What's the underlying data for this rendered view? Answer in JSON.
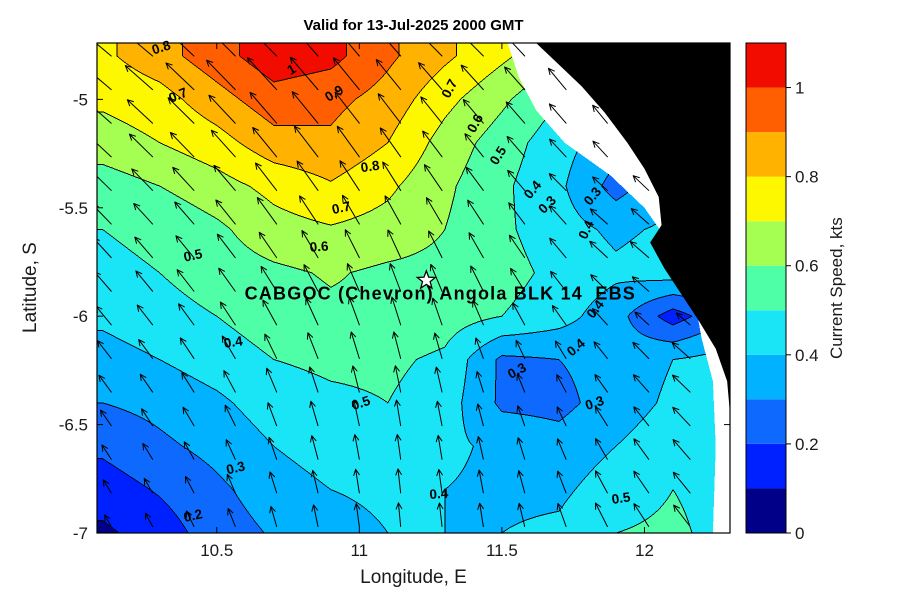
{
  "title": "Valid for 13-Jul-2025 2000 GMT",
  "axes": {
    "xlabel": "Longitude, E",
    "ylabel": "Latitude, S",
    "xlim": [
      10.08,
      12.3
    ],
    "ylim": [
      -7.0,
      -4.74
    ],
    "x_ticks": [
      10.5,
      11,
      11.5,
      12
    ],
    "x_tick_labels": [
      "10.5",
      "11",
      "11.5",
      "12"
    ],
    "y_ticks": [
      -5,
      -5.5,
      -6,
      -6.5,
      -7
    ],
    "y_tick_labels": [
      "-5",
      "-5.5",
      "-6",
      "-6.5",
      "-7"
    ]
  },
  "colorbar": {
    "label": "Current Speed, kts",
    "range": [
      0,
      1.1
    ],
    "ticks": [
      0,
      0.2,
      0.4,
      0.6,
      0.8,
      1
    ],
    "tick_labels": [
      "0",
      "0.2",
      "0.4",
      "0.6",
      "0.8",
      "1"
    ],
    "band_colors": [
      "#000089",
      "#0021ff",
      "#0e6aff",
      "#00b2ff",
      "#1ae5f7",
      "#4fffa8",
      "#a5ff52",
      "#fdf800",
      "#ffb300",
      "#ff5f00",
      "#f20c00"
    ]
  },
  "station": {
    "label": "CABGOC (Chevron) Angola BLK 14  EBS",
    "lon": 11.235,
    "lat": -5.835,
    "marker": "star"
  },
  "chart_data": {
    "type": "filled-contour-quiver",
    "title": "Valid for 13-Jul-2025 2000 GMT",
    "xlabel": "Longitude, E",
    "ylabel": "Latitude, S",
    "value_name": "current_speed_kts",
    "contour_interval": 0.1,
    "land_color": "#000000",
    "nodata_color": "#ffffff",
    "grid_lons": [
      10.1,
      10.3,
      10.5,
      10.7,
      10.9,
      11.1,
      11.3,
      11.5,
      11.7,
      11.9,
      12.1,
      12.3
    ],
    "grid_lats": [
      -4.8,
      -5.0,
      -5.2,
      -5.4,
      -5.6,
      -5.8,
      -6.0,
      -6.2,
      -6.4,
      -6.6,
      -6.8,
      -7.0
    ],
    "speed_kts": [
      [
        0.78,
        0.86,
        0.96,
        1.06,
        1.03,
        0.92,
        0.82,
        0.72,
        0.62,
        0.55,
        0.5,
        0.45
      ],
      [
        0.72,
        0.76,
        0.86,
        0.96,
        0.93,
        0.86,
        0.73,
        0.62,
        0.5,
        0.42,
        0.38,
        0.35
      ],
      [
        0.65,
        0.7,
        0.76,
        0.86,
        0.88,
        0.8,
        0.66,
        0.55,
        0.44,
        0.34,
        0.35,
        0.35
      ],
      [
        0.55,
        0.6,
        0.66,
        0.73,
        0.79,
        0.72,
        0.62,
        0.52,
        0.42,
        0.26,
        0.38,
        0.4
      ],
      [
        0.5,
        0.52,
        0.58,
        0.66,
        0.69,
        0.66,
        0.6,
        0.52,
        0.44,
        0.38,
        0.42,
        0.42
      ],
      [
        0.48,
        0.5,
        0.55,
        0.58,
        0.61,
        0.58,
        0.57,
        0.54,
        0.47,
        0.42,
        0.45,
        0.42
      ],
      [
        0.42,
        0.46,
        0.5,
        0.55,
        0.58,
        0.58,
        0.55,
        0.5,
        0.44,
        0.34,
        0.15,
        0.3
      ],
      [
        0.36,
        0.4,
        0.45,
        0.5,
        0.52,
        0.52,
        0.48,
        0.28,
        0.3,
        0.34,
        0.4,
        0.44
      ],
      [
        0.3,
        0.33,
        0.38,
        0.45,
        0.48,
        0.5,
        0.45,
        0.28,
        0.27,
        0.35,
        0.42,
        0.45
      ],
      [
        0.22,
        0.28,
        0.33,
        0.4,
        0.45,
        0.46,
        0.42,
        0.38,
        0.34,
        0.4,
        0.46,
        0.48
      ],
      [
        0.15,
        0.21,
        0.28,
        0.35,
        0.4,
        0.42,
        0.4,
        0.38,
        0.38,
        0.45,
        0.5,
        0.46
      ],
      [
        0.08,
        0.15,
        0.25,
        0.31,
        0.36,
        0.4,
        0.4,
        0.4,
        0.42,
        0.5,
        0.52,
        0.46
      ]
    ],
    "arrow_dir_deg_ccw_from_east": [
      [
        140,
        140,
        135,
        135,
        130,
        130,
        135,
        135,
        130,
        125,
        120,
        120
      ],
      [
        140,
        138,
        135,
        132,
        130,
        128,
        130,
        132,
        130,
        128,
        125,
        122
      ],
      [
        138,
        136,
        134,
        130,
        128,
        126,
        128,
        130,
        132,
        130,
        128,
        125
      ],
      [
        136,
        134,
        132,
        128,
        125,
        122,
        125,
        128,
        135,
        138,
        135,
        130
      ],
      [
        134,
        132,
        130,
        126,
        122,
        118,
        120,
        124,
        130,
        140,
        138,
        132
      ],
      [
        132,
        130,
        128,
        124,
        118,
        112,
        115,
        120,
        128,
        138,
        140,
        135
      ],
      [
        130,
        128,
        126,
        120,
        114,
        108,
        110,
        116,
        125,
        135,
        140,
        138
      ],
      [
        128,
        126,
        122,
        116,
        110,
        104,
        106,
        112,
        120,
        130,
        138,
        140
      ],
      [
        126,
        124,
        120,
        112,
        106,
        100,
        102,
        108,
        116,
        126,
        134,
        138
      ],
      [
        124,
        122,
        118,
        110,
        104,
        98,
        100,
        105,
        112,
        122,
        130,
        135
      ],
      [
        122,
        120,
        116,
        108,
        102,
        96,
        98,
        102,
        110,
        120,
        128,
        132
      ],
      [
        120,
        118,
        114,
        106,
        100,
        95,
        96,
        100,
        108,
        118,
        126,
        130
      ]
    ],
    "quiver": {
      "lon_start": 10.13,
      "lon_step": 0.145,
      "lon_count": 16,
      "lat_start": -4.8,
      "lat_step": 0.155,
      "lat_count": 15
    },
    "contour_labels": [
      {
        "text": "0.8",
        "lon": 10.31,
        "lat": -4.78,
        "rot": -18
      },
      {
        "text": "0.7",
        "lon": 10.37,
        "lat": -5.0,
        "rot": -22
      },
      {
        "text": "1",
        "lon": 10.77,
        "lat": -4.88,
        "rot": -30
      },
      {
        "text": "0.9",
        "lon": 10.92,
        "lat": -4.99,
        "rot": -32
      },
      {
        "text": "0.8",
        "lon": 11.04,
        "lat": -5.33,
        "rot": -8
      },
      {
        "text": "0.7",
        "lon": 10.94,
        "lat": -5.52,
        "rot": -12
      },
      {
        "text": "0.6",
        "lon": 10.86,
        "lat": -5.7,
        "rot": -4
      },
      {
        "text": "0.7",
        "lon": 11.33,
        "lat": -4.96,
        "rot": -62
      },
      {
        "text": "0.6",
        "lon": 11.42,
        "lat": -5.12,
        "rot": -62
      },
      {
        "text": "0.5",
        "lon": 11.5,
        "lat": -5.27,
        "rot": -58
      },
      {
        "text": "0.4",
        "lon": 11.62,
        "lat": -5.43,
        "rot": -50
      },
      {
        "text": "0.3",
        "lon": 11.67,
        "lat": -5.5,
        "rot": -45
      },
      {
        "text": "0.3",
        "lon": 11.83,
        "lat": -5.46,
        "rot": -50
      },
      {
        "text": "0.4",
        "lon": 11.81,
        "lat": -5.61,
        "rot": -65
      },
      {
        "text": "0.5",
        "lon": 10.42,
        "lat": -5.74,
        "rot": -12
      },
      {
        "text": "0.4",
        "lon": 10.56,
        "lat": -6.14,
        "rot": -8
      },
      {
        "text": "0.5",
        "lon": 11.01,
        "lat": -6.42,
        "rot": -18
      },
      {
        "text": "0.3",
        "lon": 10.57,
        "lat": -6.72,
        "rot": -14
      },
      {
        "text": "0.2",
        "lon": 10.42,
        "lat": -6.94,
        "rot": -12
      },
      {
        "text": "0.4",
        "lon": 11.28,
        "lat": -6.84,
        "rot": -4
      },
      {
        "text": "0.3",
        "lon": 11.56,
        "lat": -6.27,
        "rot": -28
      },
      {
        "text": "0.3",
        "lon": 11.83,
        "lat": -6.42,
        "rot": -18
      },
      {
        "text": "0.4",
        "lon": 11.77,
        "lat": -6.16,
        "rot": -40
      },
      {
        "text": "0.4",
        "lon": 11.84,
        "lat": -5.98,
        "rot": -52
      },
      {
        "text": "0.5",
        "lon": 11.92,
        "lat": -6.86,
        "rot": -8
      }
    ],
    "nodata_boundary": [
      [
        11.52,
        -4.74
      ],
      [
        11.56,
        -4.9
      ],
      [
        11.62,
        -5.05
      ],
      [
        11.72,
        -5.2
      ],
      [
        11.88,
        -5.35
      ],
      [
        12.0,
        -5.5
      ],
      [
        12.08,
        -5.65
      ],
      [
        12.14,
        -5.8
      ],
      [
        12.18,
        -5.95
      ],
      [
        12.2,
        -6.1
      ],
      [
        12.24,
        -6.3
      ],
      [
        12.25,
        -6.6
      ],
      [
        12.24,
        -7.0
      ]
    ],
    "land_polygon": [
      [
        11.62,
        -4.74
      ],
      [
        11.7,
        -4.84
      ],
      [
        11.78,
        -4.94
      ],
      [
        11.86,
        -5.06
      ],
      [
        11.94,
        -5.2
      ],
      [
        12.0,
        -5.32
      ],
      [
        12.05,
        -5.45
      ],
      [
        12.06,
        -5.58
      ],
      [
        12.02,
        -5.66
      ],
      [
        12.07,
        -5.78
      ],
      [
        12.13,
        -5.9
      ],
      [
        12.19,
        -6.02
      ],
      [
        12.25,
        -6.15
      ],
      [
        12.29,
        -6.3
      ],
      [
        12.3,
        -6.45
      ],
      [
        12.3,
        -4.74
      ]
    ]
  }
}
